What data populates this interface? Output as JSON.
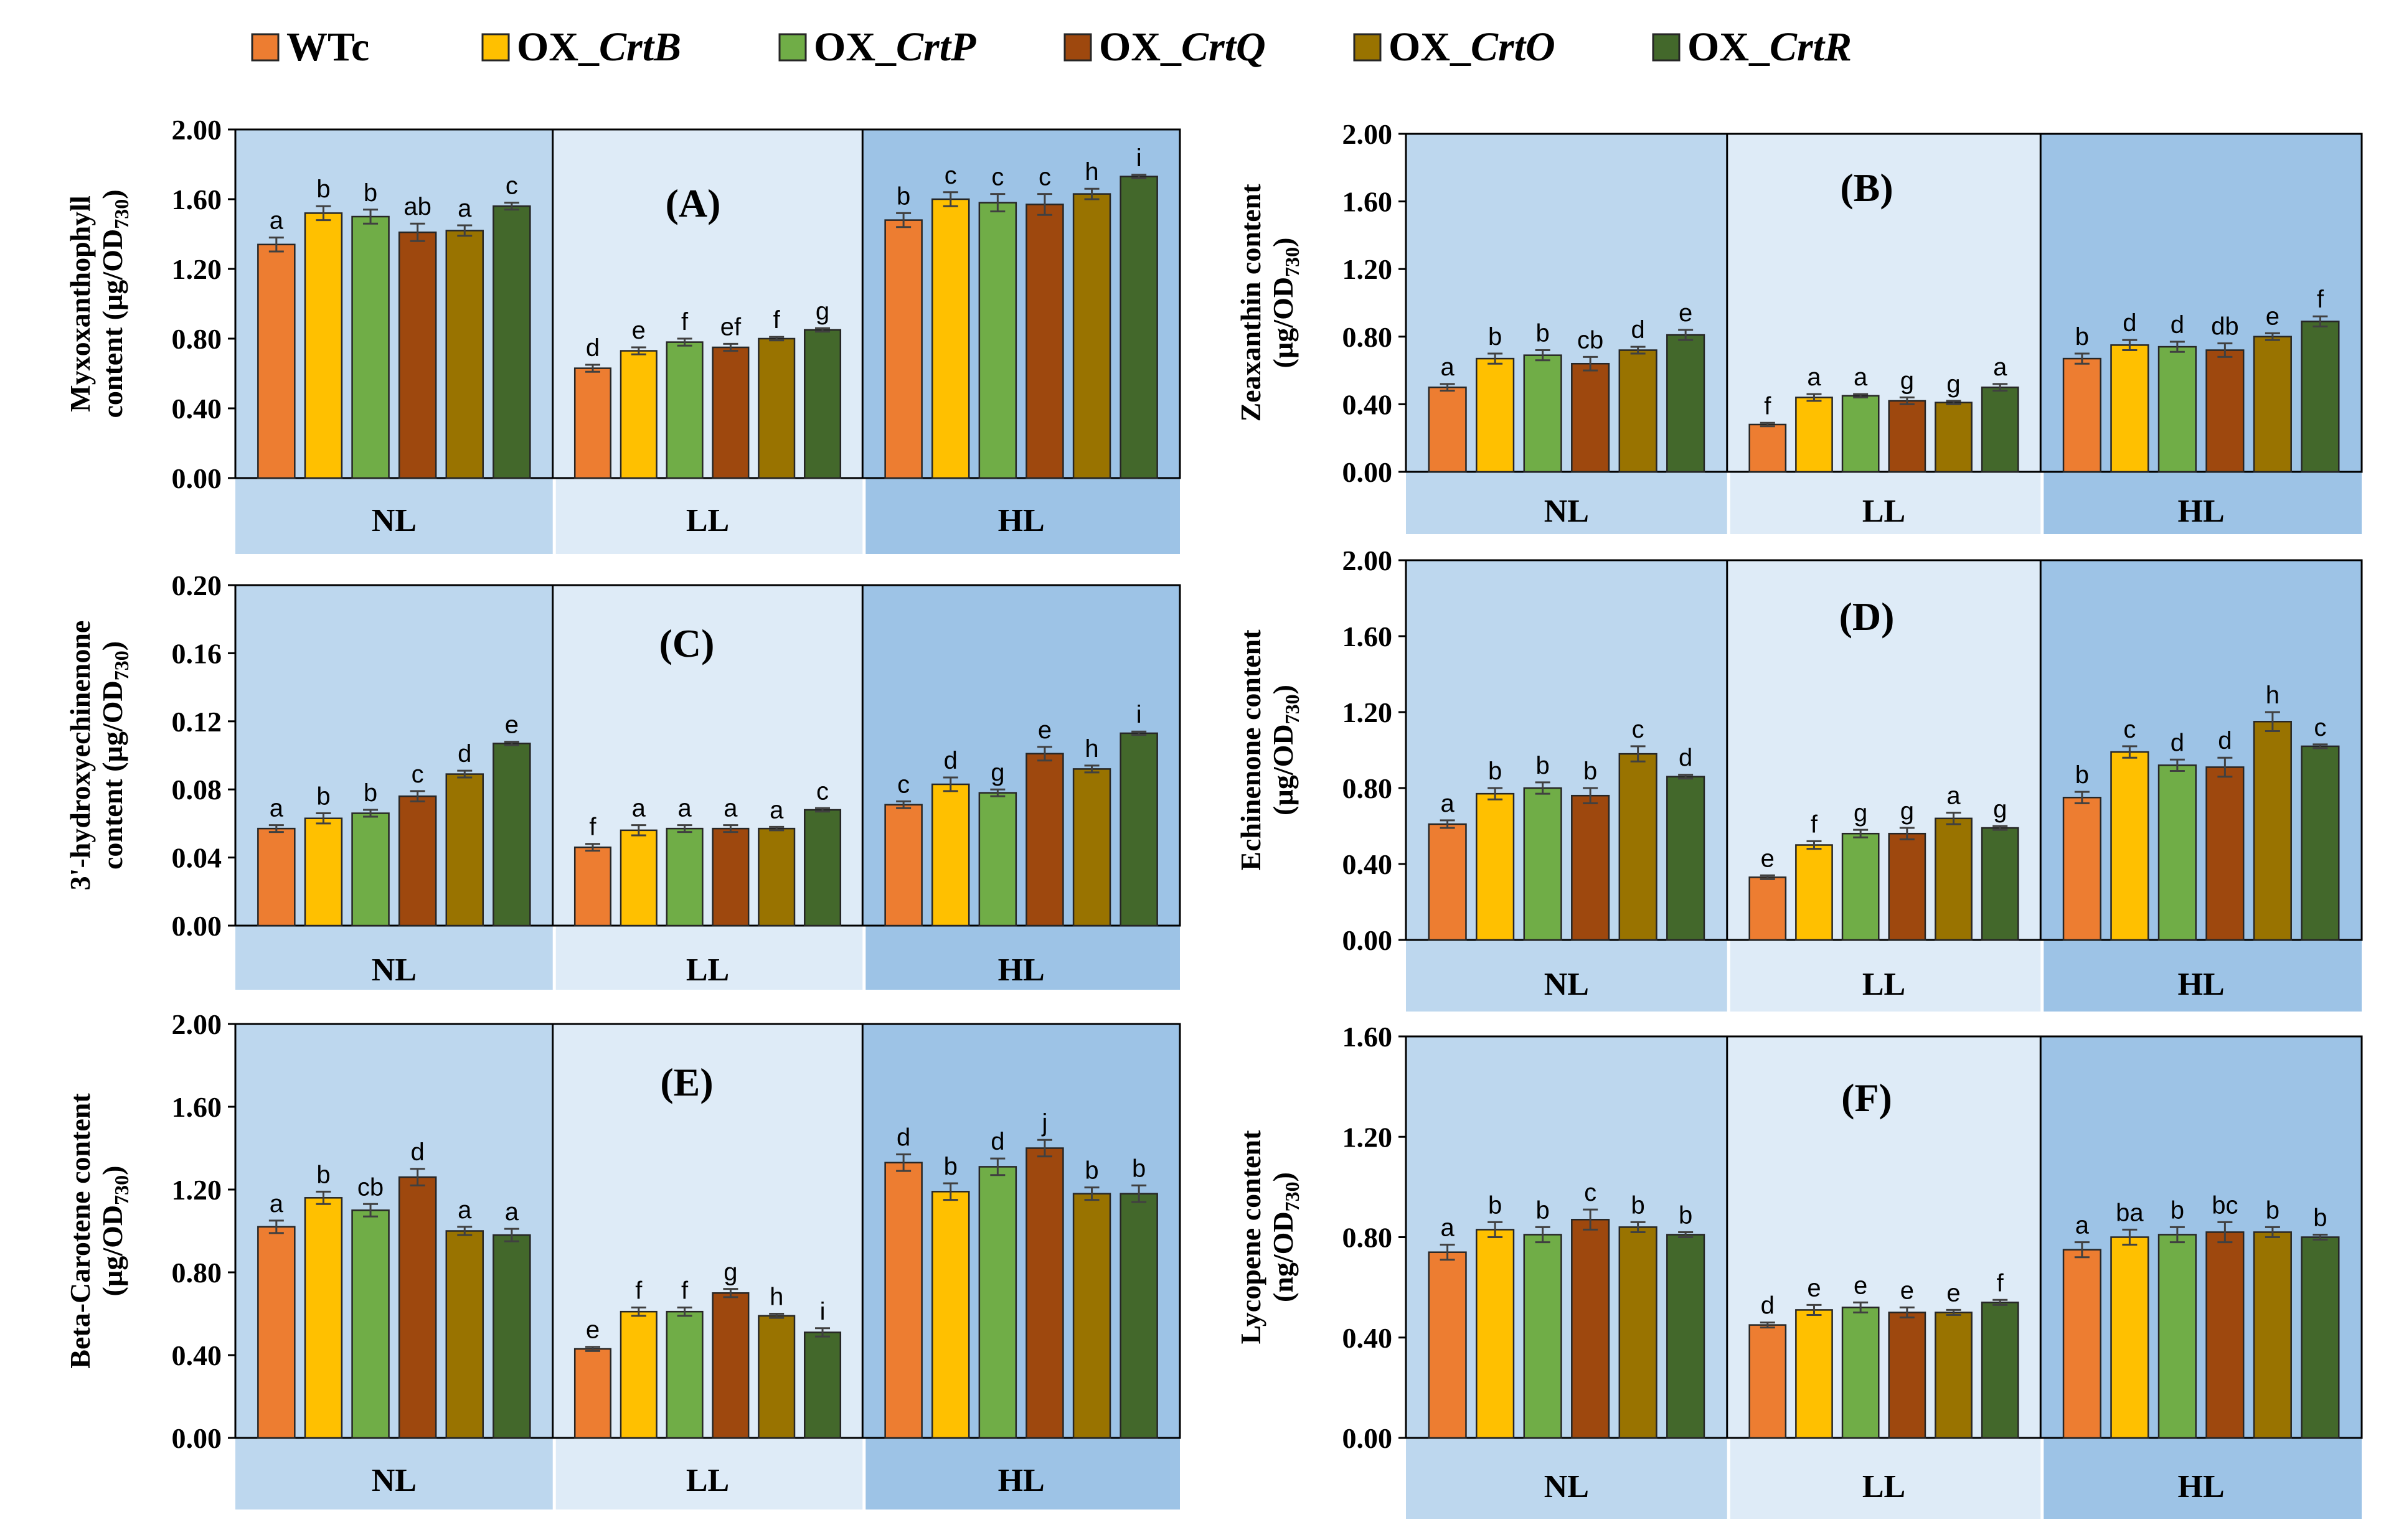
{
  "legend": {
    "entries": [
      {
        "prefix": "",
        "label": "WTc",
        "color": "#ED7D31"
      },
      {
        "prefix": "OX_",
        "label": "CrtB",
        "color": "#FFC000"
      },
      {
        "prefix": "OX_",
        "label": "CrtP",
        "color": "#70AD47"
      },
      {
        "prefix": "OX_",
        "label": "CrtQ",
        "color": "#9E480E"
      },
      {
        "prefix": "OX_",
        "label": "CrtO",
        "color": "#997300"
      },
      {
        "prefix": "OX_",
        "label": "CrtR",
        "color": "#43682B"
      }
    ]
  },
  "group_colors": {
    "NL": "#BDD7EE",
    "LL": "#DEEBF7",
    "HL": "#9DC3E6"
  },
  "chart_data": [
    {
      "type": "bar",
      "panel": "(A)",
      "ylabel_lines": [
        "Myxoxanthophyll",
        "content (µg/OD"
      ],
      "ylabel_sub": "730",
      "ylabel_end": ")",
      "ylim": [
        0,
        2.0
      ],
      "yticks": [
        "0.00",
        "0.40",
        "0.80",
        "1.20",
        "1.60",
        "2.00"
      ],
      "categories": [
        "NL",
        "LL",
        "HL"
      ],
      "series": [
        {
          "name": "WTc",
          "values": [
            1.34,
            0.63,
            1.48
          ],
          "errors": [
            0.04,
            0.02,
            0.04
          ],
          "letters": [
            "a",
            "d",
            "b"
          ]
        },
        {
          "name": "OX_CrtB",
          "values": [
            1.52,
            0.73,
            1.6
          ],
          "errors": [
            0.04,
            0.02,
            0.04
          ],
          "letters": [
            "b",
            "e",
            "c"
          ]
        },
        {
          "name": "OX_CrtP",
          "values": [
            1.5,
            0.78,
            1.58
          ],
          "errors": [
            0.04,
            0.02,
            0.05
          ],
          "letters": [
            "b",
            "f",
            "c"
          ]
        },
        {
          "name": "OX_CrtQ",
          "values": [
            1.41,
            0.75,
            1.57
          ],
          "errors": [
            0.05,
            0.02,
            0.06
          ],
          "letters": [
            "ab",
            "ef",
            "c"
          ]
        },
        {
          "name": "OX_CrtO",
          "values": [
            1.42,
            0.8,
            1.63
          ],
          "errors": [
            0.03,
            0.01,
            0.03
          ],
          "letters": [
            "a",
            "f",
            "h"
          ]
        },
        {
          "name": "OX_CrtR",
          "values": [
            1.56,
            0.85,
            1.73
          ],
          "errors": [
            0.02,
            0.01,
            0.01
          ],
          "letters": [
            "c",
            "g",
            "i"
          ]
        }
      ]
    },
    {
      "type": "bar",
      "panel": "(B)",
      "ylabel_lines": [
        "Zeaxanthin content",
        "(µg/OD"
      ],
      "ylabel_sub": "730",
      "ylabel_end": ")",
      "ylim": [
        0,
        2.0
      ],
      "yticks": [
        "0.00",
        "0.40",
        "0.80",
        "1.20",
        "1.60",
        "2.00"
      ],
      "categories": [
        "NL",
        "LL",
        "HL"
      ],
      "series": [
        {
          "name": "WTc",
          "values": [
            0.5,
            0.28,
            0.67
          ],
          "errors": [
            0.02,
            0.01,
            0.03
          ],
          "letters": [
            "a",
            "f",
            "b"
          ]
        },
        {
          "name": "OX_CrtB",
          "values": [
            0.67,
            0.44,
            0.75
          ],
          "errors": [
            0.03,
            0.02,
            0.03
          ],
          "letters": [
            "b",
            "a",
            "d"
          ]
        },
        {
          "name": "OX_CrtP",
          "values": [
            0.69,
            0.45,
            0.74
          ],
          "errors": [
            0.03,
            0.01,
            0.03
          ],
          "letters": [
            "b",
            "a",
            "d"
          ]
        },
        {
          "name": "OX_CrtQ",
          "values": [
            0.64,
            0.42,
            0.72
          ],
          "errors": [
            0.04,
            0.02,
            0.04
          ],
          "letters": [
            "cb",
            "g",
            "db"
          ]
        },
        {
          "name": "OX_CrtO",
          "values": [
            0.72,
            0.41,
            0.8
          ],
          "errors": [
            0.02,
            0.01,
            0.02
          ],
          "letters": [
            "d",
            "g",
            "e"
          ]
        },
        {
          "name": "OX_CrtR",
          "values": [
            0.81,
            0.5,
            0.89
          ],
          "errors": [
            0.03,
            0.02,
            0.03
          ],
          "letters": [
            "e",
            "a",
            "f"
          ]
        }
      ]
    },
    {
      "type": "bar",
      "panel": "(C)",
      "ylabel_lines": [
        "3'-hydroxyechinenone",
        "content (µg/OD"
      ],
      "ylabel_sub": "730",
      "ylabel_end": ")",
      "ylim": [
        0,
        0.2
      ],
      "yticks": [
        "0.00",
        "0.04",
        "0.08",
        "0.12",
        "0.16",
        "0.20"
      ],
      "categories": [
        "NL",
        "LL",
        "HL"
      ],
      "series": [
        {
          "name": "WTc",
          "values": [
            0.057,
            0.046,
            0.071
          ],
          "errors": [
            0.002,
            0.002,
            0.002
          ],
          "letters": [
            "a",
            "f",
            "c"
          ]
        },
        {
          "name": "OX_CrtB",
          "values": [
            0.063,
            0.056,
            0.083
          ],
          "errors": [
            0.003,
            0.003,
            0.004
          ],
          "letters": [
            "b",
            "a",
            "d"
          ]
        },
        {
          "name": "OX_CrtP",
          "values": [
            0.066,
            0.057,
            0.078
          ],
          "errors": [
            0.002,
            0.002,
            0.002
          ],
          "letters": [
            "b",
            "a",
            "g"
          ]
        },
        {
          "name": "OX_CrtQ",
          "values": [
            0.076,
            0.057,
            0.101
          ],
          "errors": [
            0.003,
            0.002,
            0.004
          ],
          "letters": [
            "c",
            "a",
            "e"
          ]
        },
        {
          "name": "OX_CrtO",
          "values": [
            0.089,
            0.057,
            0.092
          ],
          "errors": [
            0.002,
            0.001,
            0.002
          ],
          "letters": [
            "d",
            "a",
            "h"
          ]
        },
        {
          "name": "OX_CrtR",
          "values": [
            0.107,
            0.068,
            0.113
          ],
          "errors": [
            0.001,
            0.001,
            0.001
          ],
          "letters": [
            "e",
            "c",
            "i"
          ]
        }
      ]
    },
    {
      "type": "bar",
      "panel": "(D)",
      "ylabel_lines": [
        "Echinenone content",
        "(µg/OD"
      ],
      "ylabel_sub": "730",
      "ylabel_end": ")",
      "ylim": [
        0,
        2.0
      ],
      "yticks": [
        "0.00",
        "0.40",
        "0.80",
        "1.20",
        "1.60",
        "2.00"
      ],
      "categories": [
        "NL",
        "LL",
        "HL"
      ],
      "series": [
        {
          "name": "WTc",
          "values": [
            0.61,
            0.33,
            0.75
          ],
          "errors": [
            0.02,
            0.01,
            0.03
          ],
          "letters": [
            "a",
            "e",
            "b"
          ]
        },
        {
          "name": "OX_CrtB",
          "values": [
            0.77,
            0.5,
            0.99
          ],
          "errors": [
            0.03,
            0.02,
            0.03
          ],
          "letters": [
            "b",
            "f",
            "c"
          ]
        },
        {
          "name": "OX_CrtP",
          "values": [
            0.8,
            0.56,
            0.92
          ],
          "errors": [
            0.03,
            0.02,
            0.03
          ],
          "letters": [
            "b",
            "g",
            "d"
          ]
        },
        {
          "name": "OX_CrtQ",
          "values": [
            0.76,
            0.56,
            0.91
          ],
          "errors": [
            0.04,
            0.03,
            0.05
          ],
          "letters": [
            "b",
            "g",
            "d"
          ]
        },
        {
          "name": "OX_CrtO",
          "values": [
            0.98,
            0.64,
            1.15
          ],
          "errors": [
            0.04,
            0.03,
            0.05
          ],
          "letters": [
            "c",
            "a",
            "h"
          ]
        },
        {
          "name": "OX_CrtR",
          "values": [
            0.86,
            0.59,
            1.02
          ],
          "errors": [
            0.01,
            0.01,
            0.01
          ],
          "letters": [
            "d",
            "g",
            "c"
          ]
        }
      ]
    },
    {
      "type": "bar",
      "panel": "(E)",
      "ylabel_lines": [
        "Beta-Carotene content",
        "(µg/OD"
      ],
      "ylabel_sub": "730",
      "ylabel_end": ")",
      "ylim": [
        0,
        2.0
      ],
      "yticks": [
        "0.00",
        "0.40",
        "0.80",
        "1.20",
        "1.60",
        "2.00"
      ],
      "categories": [
        "NL",
        "LL",
        "HL"
      ],
      "series": [
        {
          "name": "WTc",
          "values": [
            1.02,
            0.43,
            1.33
          ],
          "errors": [
            0.03,
            0.01,
            0.04
          ],
          "letters": [
            "a",
            "e",
            "d"
          ]
        },
        {
          "name": "OX_CrtB",
          "values": [
            1.16,
            0.61,
            1.19
          ],
          "errors": [
            0.03,
            0.02,
            0.04
          ],
          "letters": [
            "b",
            "f",
            "b"
          ]
        },
        {
          "name": "OX_CrtP",
          "values": [
            1.1,
            0.61,
            1.31
          ],
          "errors": [
            0.03,
            0.02,
            0.04
          ],
          "letters": [
            "cb",
            "f",
            "d"
          ]
        },
        {
          "name": "OX_CrtQ",
          "values": [
            1.26,
            0.7,
            1.4
          ],
          "errors": [
            0.04,
            0.02,
            0.04
          ],
          "letters": [
            "d",
            "g",
            "j"
          ]
        },
        {
          "name": "OX_CrtO",
          "values": [
            1.0,
            0.59,
            1.18
          ],
          "errors": [
            0.02,
            0.01,
            0.03
          ],
          "letters": [
            "a",
            "h",
            "b"
          ]
        },
        {
          "name": "OX_CrtR",
          "values": [
            0.98,
            0.51,
            1.18
          ],
          "errors": [
            0.03,
            0.02,
            0.04
          ],
          "letters": [
            "a",
            "i",
            "b"
          ]
        }
      ]
    },
    {
      "type": "bar",
      "panel": "(F)",
      "ylabel_lines": [
        "Lycopene content",
        "(ng/OD"
      ],
      "ylabel_sub": "730",
      "ylabel_end": ")",
      "ylim": [
        0,
        1.6
      ],
      "yticks": [
        "0.00",
        "0.40",
        "0.80",
        "1.20",
        "1.60"
      ],
      "categories": [
        "NL",
        "LL",
        "HL"
      ],
      "series": [
        {
          "name": "WTc",
          "values": [
            0.74,
            0.45,
            0.75
          ],
          "errors": [
            0.03,
            0.01,
            0.03
          ],
          "letters": [
            "a",
            "d",
            "a"
          ]
        },
        {
          "name": "OX_CrtB",
          "values": [
            0.83,
            0.51,
            0.8
          ],
          "errors": [
            0.03,
            0.02,
            0.03
          ],
          "letters": [
            "b",
            "e",
            "ba"
          ]
        },
        {
          "name": "OX_CrtP",
          "values": [
            0.81,
            0.52,
            0.81
          ],
          "errors": [
            0.03,
            0.02,
            0.03
          ],
          "letters": [
            "b",
            "e",
            "b"
          ]
        },
        {
          "name": "OX_CrtQ",
          "values": [
            0.87,
            0.5,
            0.82
          ],
          "errors": [
            0.04,
            0.02,
            0.04
          ],
          "letters": [
            "c",
            "e",
            "bc"
          ]
        },
        {
          "name": "OX_CrtO",
          "values": [
            0.84,
            0.5,
            0.82
          ],
          "errors": [
            0.02,
            0.01,
            0.02
          ],
          "letters": [
            "b",
            "e",
            "b"
          ]
        },
        {
          "name": "OX_CrtR",
          "values": [
            0.81,
            0.54,
            0.8
          ],
          "errors": [
            0.01,
            0.01,
            0.01
          ],
          "letters": [
            "b",
            "f",
            "b"
          ]
        }
      ]
    }
  ]
}
